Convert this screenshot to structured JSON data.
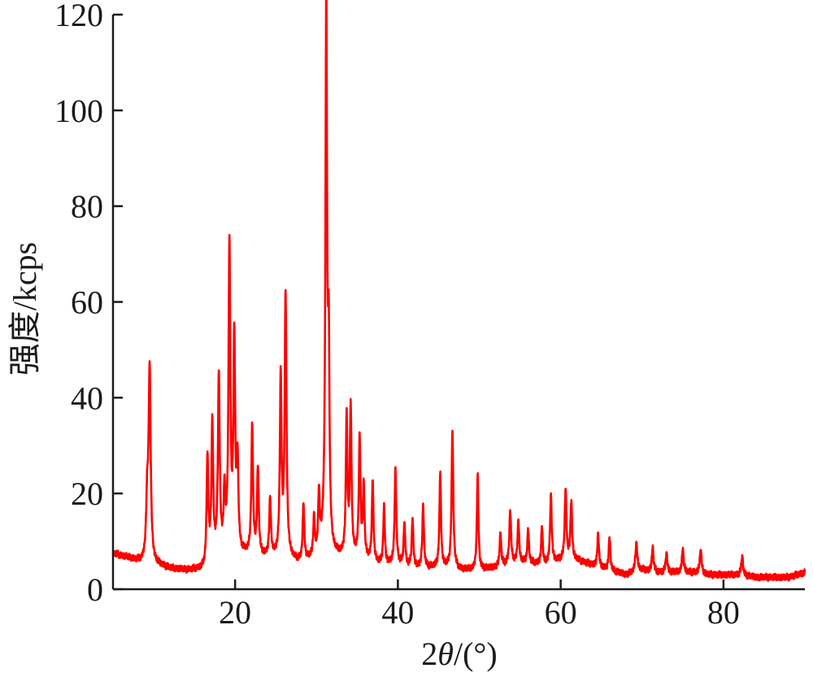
{
  "chart_data": {
    "type": "line",
    "title": "",
    "xlabel": "2θ/(°)",
    "ylabel": "强度/kcps",
    "xlim": [
      5,
      90
    ],
    "ylim": [
      0,
      120
    ],
    "x_ticks": [
      20,
      40,
      60,
      80
    ],
    "y_ticks": [
      0,
      20,
      40,
      60,
      80,
      100,
      120
    ],
    "grid": false,
    "legend": "none",
    "series": [
      {
        "color": "#ff0000",
        "baseline": [
          [
            5,
            7.5
          ],
          [
            7,
            6.5
          ],
          [
            8.5,
            5.5
          ],
          [
            9.3,
            5
          ],
          [
            10.5,
            5
          ],
          [
            12,
            4.3
          ],
          [
            14,
            3.9
          ],
          [
            16.3,
            4
          ],
          [
            16.9,
            6
          ],
          [
            18,
            6.5
          ],
          [
            20,
            7
          ],
          [
            22,
            7
          ],
          [
            24,
            6.5
          ],
          [
            26,
            6.5
          ],
          [
            28,
            5.5
          ],
          [
            30,
            6.5
          ],
          [
            31,
            9
          ],
          [
            32,
            7
          ],
          [
            34,
            6.5
          ],
          [
            36,
            6
          ],
          [
            38,
            5
          ],
          [
            40,
            5
          ],
          [
            42,
            4.5
          ],
          [
            44,
            4.5
          ],
          [
            46,
            4.5
          ],
          [
            48,
            4
          ],
          [
            50,
            4
          ],
          [
            52,
            4.5
          ],
          [
            54,
            5.5
          ],
          [
            56,
            5.5
          ],
          [
            58,
            5
          ],
          [
            60,
            6
          ],
          [
            62,
            6
          ],
          [
            64,
            5
          ],
          [
            66,
            4
          ],
          [
            68,
            3
          ],
          [
            70,
            4
          ],
          [
            72,
            3.5
          ],
          [
            74,
            3.5
          ],
          [
            76,
            3.5
          ],
          [
            78,
            3
          ],
          [
            80,
            3
          ],
          [
            82,
            3
          ],
          [
            84,
            2.5
          ],
          [
            86,
            2.5
          ],
          [
            88,
            2.5
          ],
          [
            89,
            3
          ],
          [
            90,
            3.5
          ]
        ],
        "peaks": [
          [
            9.5,
            40,
            0.15
          ],
          [
            9.2,
            12,
            0.15
          ],
          [
            16.6,
            22,
            0.12
          ],
          [
            17.2,
            28,
            0.12
          ],
          [
            18.0,
            37,
            0.13
          ],
          [
            18.7,
            12,
            0.12
          ],
          [
            19.3,
            64,
            0.13
          ],
          [
            19.9,
            44,
            0.13
          ],
          [
            20.3,
            18,
            0.12
          ],
          [
            22.1,
            27,
            0.12
          ],
          [
            22.8,
            18,
            0.12
          ],
          [
            24.3,
            12,
            0.12
          ],
          [
            25.6,
            37,
            0.12
          ],
          [
            26.2,
            55,
            0.13
          ],
          [
            28.4,
            12,
            0.11
          ],
          [
            29.7,
            8,
            0.11
          ],
          [
            30.3,
            12,
            0.11
          ],
          [
            31.2,
            114,
            0.12
          ],
          [
            31.5,
            38,
            0.11
          ],
          [
            33.7,
            29,
            0.11
          ],
          [
            34.2,
            31,
            0.12
          ],
          [
            35.3,
            25,
            0.12
          ],
          [
            35.8,
            15,
            0.11
          ],
          [
            36.9,
            17,
            0.11
          ],
          [
            38.3,
            12,
            0.11
          ],
          [
            39.7,
            20,
            0.12
          ],
          [
            40.8,
            9,
            0.11
          ],
          [
            41.8,
            10,
            0.11
          ],
          [
            43.1,
            13,
            0.11
          ],
          [
            45.2,
            20,
            0.11
          ],
          [
            46.7,
            29,
            0.12
          ],
          [
            49.8,
            20,
            0.11
          ],
          [
            52.6,
            7,
            0.11
          ],
          [
            53.8,
            11,
            0.12
          ],
          [
            54.8,
            9,
            0.11
          ],
          [
            56.0,
            7,
            0.11
          ],
          [
            57.7,
            8,
            0.11
          ],
          [
            58.8,
            14,
            0.12
          ],
          [
            60.6,
            15,
            0.12
          ],
          [
            61.3,
            12,
            0.12
          ],
          [
            64.6,
            7,
            0.11
          ],
          [
            66.0,
            7,
            0.11
          ],
          [
            69.3,
            6,
            0.14
          ],
          [
            71.3,
            5,
            0.12
          ],
          [
            73.0,
            4,
            0.12
          ],
          [
            75.0,
            5,
            0.12
          ],
          [
            77.2,
            5,
            0.14
          ],
          [
            82.3,
            4,
            0.12
          ]
        ]
      }
    ]
  }
}
